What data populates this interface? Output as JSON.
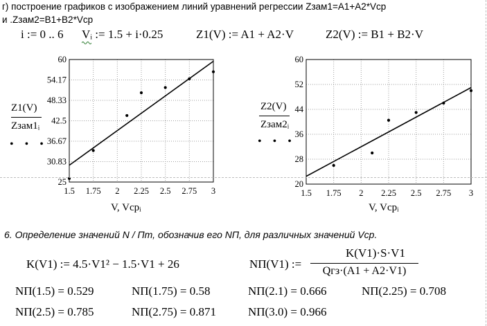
{
  "header": {
    "line1": "г) построение графиков с изображением  линий уравнений регрессии Zзам1=А1+А2*Vср",
    "line2": "и .Zзам2=В1+В2*Vср"
  },
  "defs": {
    "range": "i := 0 .. 6",
    "v_def": "Vᵢ := 1.5 + i·0.25",
    "z1_def": "Z1(V) := A1 + A2·V",
    "z2_def": "Z2(V) := B1 + B2·V"
  },
  "chart_data": [
    {
      "type": "scatter",
      "title": "",
      "xlabel": "V, Vcpᵢ",
      "ylabel_top": "Z1(V)",
      "ylabel_bottom": "Zзам1ᵢ",
      "xlim": [
        1.5,
        3
      ],
      "ylim": [
        25,
        60
      ],
      "xticks": [
        "1.5",
        "1.75",
        "2",
        "2.25",
        "2.5",
        "2.75",
        "3"
      ],
      "yticks": [
        "25",
        "30.83",
        "36.67",
        "42.5",
        "48.33",
        "54.17",
        "60"
      ],
      "line": {
        "x": [
          1.5,
          3
        ],
        "y": [
          29.8,
          59.5
        ]
      },
      "points": {
        "x": [
          1.5,
          1.75,
          2.1,
          2.25,
          2.5,
          2.75,
          3.0
        ],
        "y": [
          26.0,
          34.0,
          44.0,
          50.5,
          52.0,
          54.5,
          56.5
        ]
      },
      "grid": true
    },
    {
      "type": "scatter",
      "title": "",
      "xlabel": "V, Vcpᵢ",
      "ylabel_top": "Z2(V)",
      "ylabel_bottom": "Zзам2ᵢ",
      "xlim": [
        1.5,
        3
      ],
      "ylim": [
        20,
        60
      ],
      "xticks": [
        "1.5",
        "1.75",
        "2",
        "2.25",
        "2.5",
        "2.75",
        "3"
      ],
      "yticks": [
        "20",
        "28",
        "36",
        "44",
        "52",
        "60"
      ],
      "line": {
        "x": [
          1.5,
          3
        ],
        "y": [
          22.5,
          51.0
        ]
      },
      "points": {
        "x": [
          1.75,
          2.1,
          2.25,
          2.5,
          2.75,
          3.0
        ],
        "y": [
          26.0,
          30.0,
          40.5,
          43.0,
          46.0,
          50.0
        ]
      },
      "grid": true
    }
  ],
  "section6": {
    "heading": "6. Определение значений N / Пт, обозначив его NП, для различных значений Vср."
  },
  "formulas": {
    "k_def": "K(V1) := 4.5·V1² − 1.5·V1 + 26",
    "np_lhs": "NП(V1) :=",
    "np_num": "K(V1)·S·V1",
    "np_den": "Qгз·(A1 + A2·V1)"
  },
  "results": [
    {
      "label": "NП(1.5) = 0.529"
    },
    {
      "label": "NП(1.75) = 0.58"
    },
    {
      "label": "NП(2.1) = 0.666"
    },
    {
      "label": "NП(2.25) = 0.708"
    },
    {
      "label": "NП(2.5) = 0.785"
    },
    {
      "label": "NП(2.75) = 0.871"
    },
    {
      "label": "NП(3.0) = 0.966"
    }
  ]
}
